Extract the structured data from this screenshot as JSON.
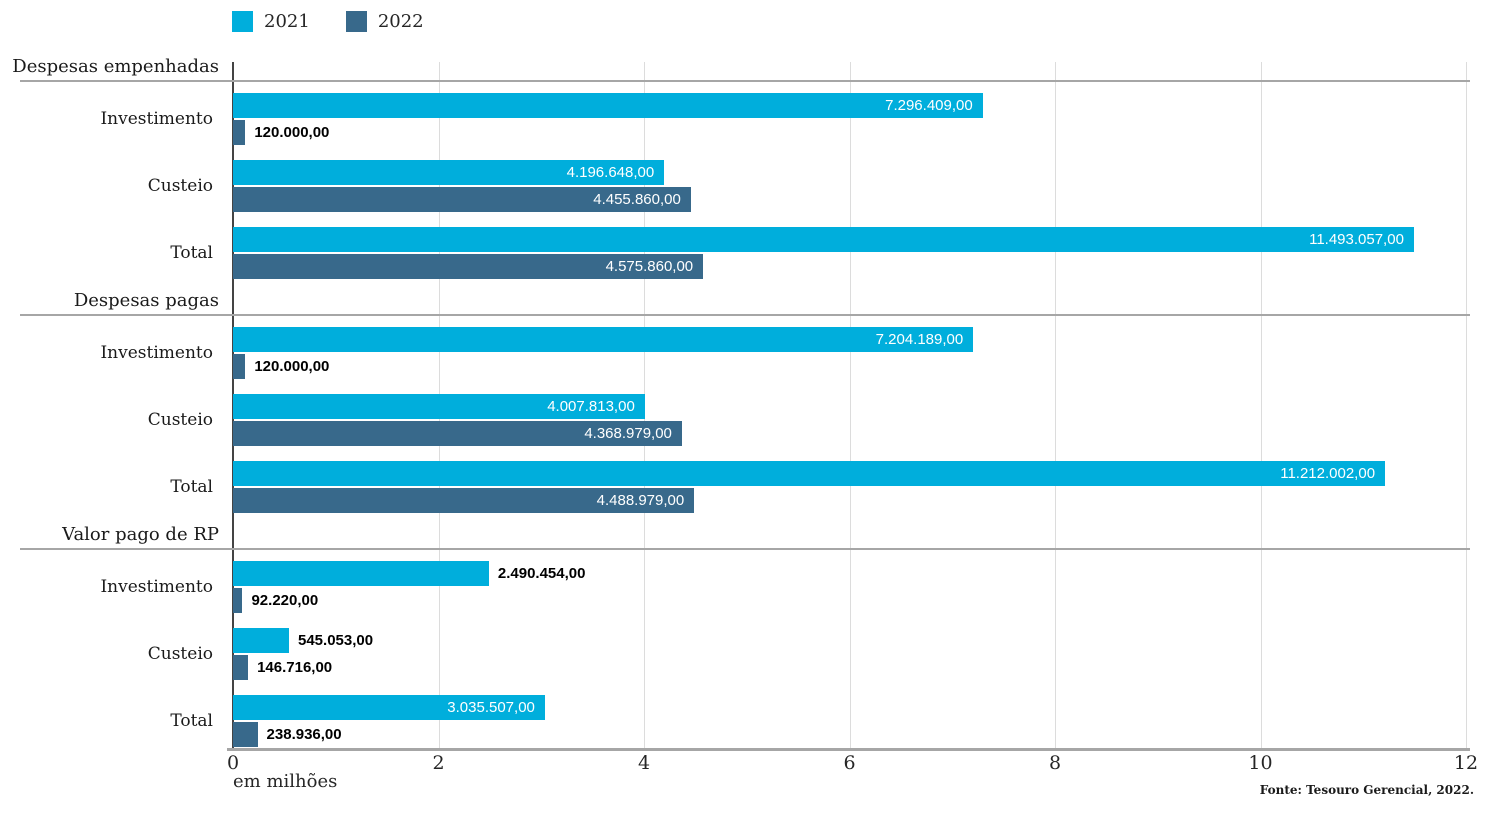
{
  "legend": {
    "items": [
      {
        "label": "2021",
        "color": "#00aedc"
      },
      {
        "label": "2022",
        "color": "#38698b"
      }
    ]
  },
  "axis": {
    "ticks": [
      0,
      2,
      4,
      6,
      8,
      10,
      12
    ],
    "caption": "em milhões"
  },
  "source": "Fonte: Tesouro Gerencial, 2022.",
  "colors": {
    "series_2021": "#00aedc",
    "series_2022": "#38698b",
    "gridline": "#dcdcdc",
    "separator": "#a6a6a6"
  },
  "chart_data": {
    "type": "bar",
    "orientation": "horizontal",
    "unit": "milhões",
    "xlim_millions": [
      0,
      12
    ],
    "grid": true,
    "legend_position": "top-left",
    "series_names": [
      "2021",
      "2022"
    ],
    "sections": [
      {
        "title": "Despesas empenhadas",
        "rows": [
          {
            "category": "Investimento",
            "bars": [
              {
                "series": "2021",
                "value": 7296409.0,
                "label": "7.296.409,00",
                "label_inside": true
              },
              {
                "series": "2022",
                "value": 120000.0,
                "label": "120.000,00",
                "label_inside": false
              }
            ]
          },
          {
            "category": "Custeio",
            "bars": [
              {
                "series": "2021",
                "value": 4196648.0,
                "label": "4.196.648,00",
                "label_inside": true
              },
              {
                "series": "2022",
                "value": 4455860.0,
                "label": "4.455.860,00",
                "label_inside": true
              }
            ]
          },
          {
            "category": "Total",
            "bars": [
              {
                "series": "2021",
                "value": 11493057.0,
                "label": "11.493.057,00",
                "label_inside": true
              },
              {
                "series": "2022",
                "value": 4575860.0,
                "label": "4.575.860,00",
                "label_inside": true
              }
            ]
          }
        ]
      },
      {
        "title": "Despesas pagas",
        "rows": [
          {
            "category": "Investimento",
            "bars": [
              {
                "series": "2021",
                "value": 7204189.0,
                "label": "7.204.189,00",
                "label_inside": true
              },
              {
                "series": "2022",
                "value": 120000.0,
                "label": "120.000,00",
                "label_inside": false
              }
            ]
          },
          {
            "category": "Custeio",
            "bars": [
              {
                "series": "2021",
                "value": 4007813.0,
                "label": "4.007.813,00",
                "label_inside": true
              },
              {
                "series": "2022",
                "value": 4368979.0,
                "label": "4.368.979,00",
                "label_inside": true
              }
            ]
          },
          {
            "category": "Total",
            "bars": [
              {
                "series": "2021",
                "value": 11212002.0,
                "label": "11.212.002,00",
                "label_inside": true
              },
              {
                "series": "2022",
                "value": 4488979.0,
                "label": "4.488.979,00",
                "label_inside": true
              }
            ]
          }
        ]
      },
      {
        "title": "Valor pago de RP",
        "rows": [
          {
            "category": "Investimento",
            "bars": [
              {
                "series": "2021",
                "value": 2490454.0,
                "label": "2.490.454,00",
                "label_inside": false
              },
              {
                "series": "2022",
                "value": 92220.0,
                "label": "92.220,00",
                "label_inside": false
              }
            ]
          },
          {
            "category": "Custeio",
            "bars": [
              {
                "series": "2021",
                "value": 545053.0,
                "label": "545.053,00",
                "label_inside": false
              },
              {
                "series": "2022",
                "value": 146716.0,
                "label": "146.716,00",
                "label_inside": false
              }
            ]
          },
          {
            "category": "Total",
            "bars": [
              {
                "series": "2021",
                "value": 3035507.0,
                "label": "3.035.507,00",
                "label_inside": true
              },
              {
                "series": "2022",
                "value": 238936.0,
                "label": "238.936,00",
                "label_inside": false
              }
            ]
          }
        ]
      }
    ]
  }
}
